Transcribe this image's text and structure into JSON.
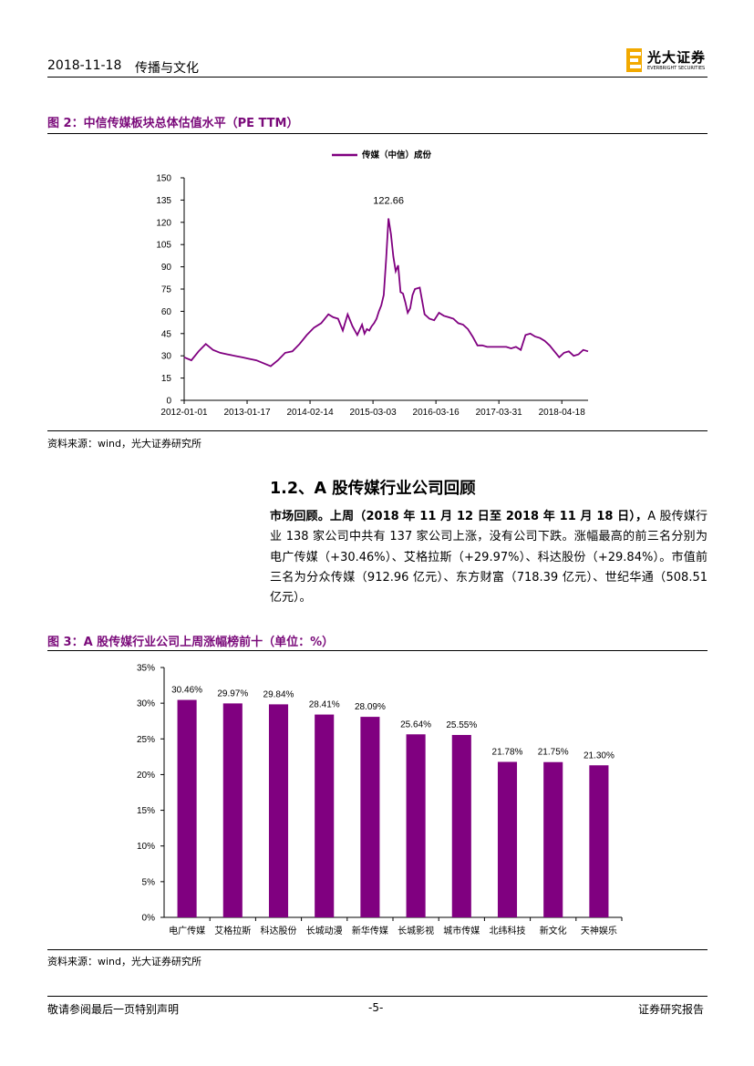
{
  "header": {
    "date": "2018-11-18",
    "sector": "传播与文化",
    "logo_cn": "光大证券",
    "logo_en": "EVERBRIGHT SECURITIES"
  },
  "figure2": {
    "title": "图 2：中信传媒板块总体估值水平（PE TTM）",
    "source": "资料来源：wind，光大证券研究所",
    "chart_data": {
      "type": "line",
      "title": "",
      "legend": [
        "传媒（中信）成份"
      ],
      "legend_position": "top-center",
      "x_tick_labels": [
        "2012-01-01",
        "2013-01-17",
        "2014-02-14",
        "2015-03-03",
        "2016-03-16",
        "2017-03-31",
        "2018-04-18"
      ],
      "y_tick_labels": [
        "0",
        "15",
        "30",
        "45",
        "60",
        "75",
        "90",
        "105",
        "120",
        "135",
        "150"
      ],
      "ylim": [
        0,
        150
      ],
      "peak_label": "122.66",
      "series": [
        {
          "name": "传媒（中信）成份",
          "color": "#800080",
          "x": [
            0,
            1.5,
            3,
            4.5,
            6,
            7.5,
            9,
            10.5,
            12,
            13.5,
            15,
            16.5,
            18,
            19.5,
            21,
            22.5,
            24,
            25.5,
            27,
            28.5,
            30,
            31,
            32,
            33,
            34,
            35,
            36,
            37,
            37.5,
            38,
            38.5,
            39,
            39.5,
            40,
            40.5,
            41,
            41.5,
            42,
            42.5,
            43,
            43.5,
            44,
            44.5,
            45,
            45.5,
            46,
            46.5,
            47,
            47.5,
            48,
            49,
            50,
            51,
            52,
            53,
            54,
            55,
            56,
            57,
            58,
            59,
            60,
            61,
            62,
            63,
            64,
            65,
            66,
            67,
            68,
            69,
            70,
            71,
            72,
            73,
            74,
            75,
            76,
            77,
            78,
            79,
            80,
            81,
            82,
            83,
            84
          ],
          "values": [
            29,
            27,
            33,
            38,
            34,
            32,
            31,
            30,
            29,
            28,
            27,
            25,
            23,
            27,
            32,
            33,
            38,
            44,
            49,
            52,
            58,
            56,
            55,
            47,
            58,
            50,
            44,
            51,
            45,
            48,
            47,
            50,
            52,
            55,
            60,
            64,
            71,
            95,
            122.66,
            112,
            97,
            87,
            91,
            73,
            72,
            66,
            59,
            62,
            71,
            75,
            76,
            58,
            55,
            54,
            59,
            57,
            56,
            55,
            52,
            51,
            48,
            43,
            37,
            37,
            36,
            36,
            36,
            36,
            36,
            35,
            36,
            34,
            44,
            45,
            43,
            42,
            40,
            37,
            33,
            29,
            32,
            33,
            30,
            31,
            34,
            33
          ]
        }
      ]
    }
  },
  "section": {
    "heading": "1.2、A 股传媒行业公司回顾",
    "para_lead": "市场回顾。上周（2018 年 11 月 12 日至 2018 年 11 月 18 日），",
    "para_body": "A 股传媒行业 138 家公司中共有 137 家公司上涨，没有公司下跌。涨幅最高的前三名分别为电广传媒（+30.46%）、艾格拉斯（+29.97%）、科达股份（+29.84%）。市值前三名为分众传媒（912.96 亿元）、东方财富（718.39 亿元）、世纪华通（508.51 亿元）。"
  },
  "figure3": {
    "title": "图 3：A 股传媒行业公司上周涨幅榜前十（单位：%）",
    "source": "资料来源：wind，光大证券研究所",
    "chart_data": {
      "type": "bar",
      "title": "",
      "categories": [
        "电广传媒",
        "艾格拉斯",
        "科达股份",
        "长城动漫",
        "新华传媒",
        "长城影视",
        "城市传媒",
        "北纬科技",
        "新文化",
        "天神娱乐"
      ],
      "values": [
        30.46,
        29.97,
        29.84,
        28.41,
        28.09,
        25.64,
        25.55,
        21.78,
        21.75,
        21.3
      ],
      "value_labels": [
        "30.46%",
        "29.97%",
        "29.84%",
        "28.41%",
        "28.09%",
        "25.64%",
        "25.55%",
        "21.78%",
        "21.75%",
        "21.30%"
      ],
      "y_tick_labels": [
        "0%",
        "5%",
        "10%",
        "15%",
        "20%",
        "25%",
        "30%",
        "35%"
      ],
      "ylim": [
        0,
        35
      ],
      "bar_color": "#800080",
      "xlabel": "",
      "ylabel": ""
    }
  },
  "footer": {
    "left": "敬请参阅最后一页特别声明",
    "page": "-5-",
    "right": "证券研究报告"
  }
}
